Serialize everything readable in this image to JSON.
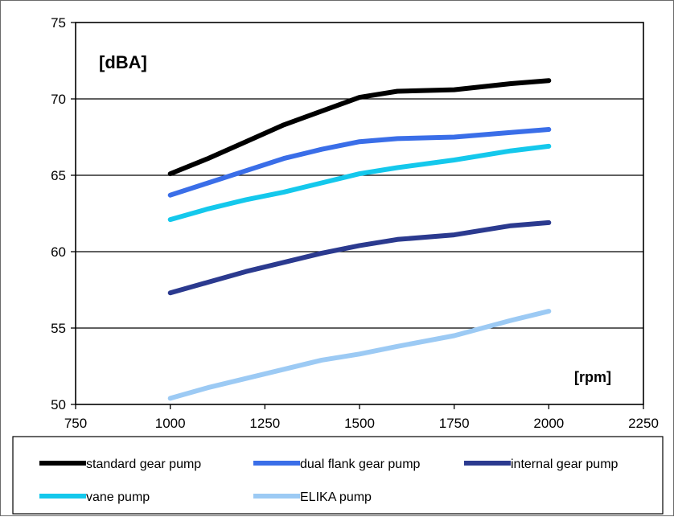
{
  "chart_data": {
    "type": "line",
    "title": "",
    "ylabel": "[dBA]",
    "xlabel": "[rpm]",
    "xlim": [
      750,
      2250
    ],
    "ylim": [
      50,
      75
    ],
    "x_ticks": [
      750,
      1000,
      1250,
      1500,
      1750,
      2000,
      2250
    ],
    "y_ticks": [
      50,
      55,
      60,
      65,
      70,
      75
    ],
    "grid": "horizontal",
    "legend_position": "bottom",
    "series": [
      {
        "name": "standard gear pump",
        "color": "#000000",
        "points": [
          [
            1000,
            65.1
          ],
          [
            1100,
            66.1
          ],
          [
            1200,
            67.2
          ],
          [
            1300,
            68.3
          ],
          [
            1400,
            69.2
          ],
          [
            1500,
            70.1
          ],
          [
            1600,
            70.5
          ],
          [
            1750,
            70.6
          ],
          [
            1900,
            71.0
          ],
          [
            2000,
            71.2
          ]
        ]
      },
      {
        "name": "dual flank gear pump",
        "color": "#3a6ee8",
        "points": [
          [
            1000,
            63.7
          ],
          [
            1100,
            64.5
          ],
          [
            1200,
            65.3
          ],
          [
            1300,
            66.1
          ],
          [
            1400,
            66.7
          ],
          [
            1500,
            67.2
          ],
          [
            1600,
            67.4
          ],
          [
            1750,
            67.5
          ],
          [
            1900,
            67.8
          ],
          [
            2000,
            68.0
          ]
        ]
      },
      {
        "name": "internal gear pump",
        "color": "#2b3a8f",
        "points": [
          [
            1000,
            57.3
          ],
          [
            1100,
            58.0
          ],
          [
            1200,
            58.7
          ],
          [
            1300,
            59.3
          ],
          [
            1400,
            59.9
          ],
          [
            1500,
            60.4
          ],
          [
            1600,
            60.8
          ],
          [
            1750,
            61.1
          ],
          [
            1900,
            61.7
          ],
          [
            2000,
            61.9
          ]
        ]
      },
      {
        "name": "vane pump",
        "color": "#14c8ec",
        "points": [
          [
            1000,
            62.1
          ],
          [
            1100,
            62.8
          ],
          [
            1200,
            63.4
          ],
          [
            1300,
            63.9
          ],
          [
            1400,
            64.5
          ],
          [
            1500,
            65.1
          ],
          [
            1600,
            65.5
          ],
          [
            1750,
            66.0
          ],
          [
            1900,
            66.6
          ],
          [
            2000,
            66.9
          ]
        ]
      },
      {
        "name": "ELIKA pump",
        "color": "#9ccaf4",
        "points": [
          [
            1000,
            50.4
          ],
          [
            1100,
            51.1
          ],
          [
            1200,
            51.7
          ],
          [
            1300,
            52.3
          ],
          [
            1400,
            52.9
          ],
          [
            1500,
            53.3
          ],
          [
            1600,
            53.8
          ],
          [
            1750,
            54.5
          ],
          [
            1900,
            55.5
          ],
          [
            2000,
            56.1
          ]
        ]
      }
    ]
  }
}
